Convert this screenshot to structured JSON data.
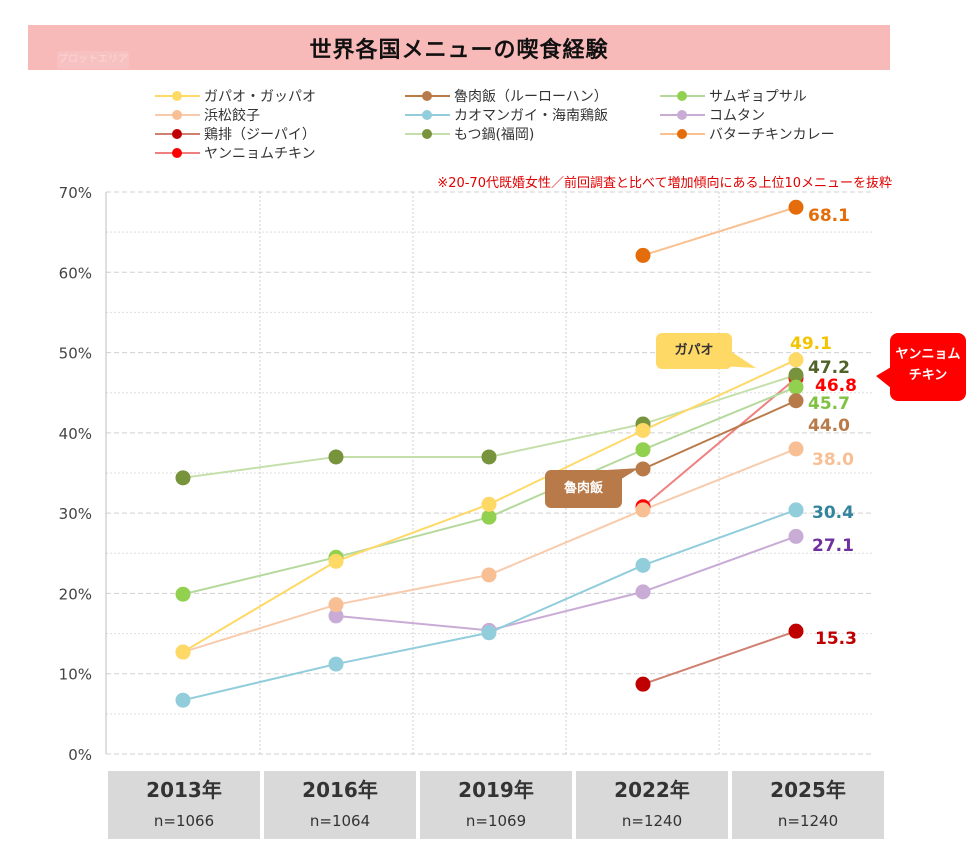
{
  "title": "世界各国メニューの喫食経験",
  "plot_area_tag": "プロットエリア",
  "note": "※20-70代既婚女性／前回調査と比べて増加傾向にある上位10メニューを抜粋",
  "callouts": {
    "gapao": {
      "text": "ガパオ",
      "bg": "#ffd966",
      "color": "#333333"
    },
    "lurou": {
      "text": "魯肉飯",
      "bg": "#b97a4a",
      "color": "#ffffff"
    },
    "yangnyeom": {
      "text": "ヤンニョム チキン",
      "line1": "ヤンニョム",
      "line2": "チキン",
      "bg": "#ff0000",
      "color": "#ffffff"
    }
  },
  "x_labels": [
    {
      "year": "2013年",
      "n": "n=1066"
    },
    {
      "year": "2016年",
      "n": "n=1064"
    },
    {
      "year": "2019年",
      "n": "n=1069"
    },
    {
      "year": "2022年",
      "n": "n=1240"
    },
    {
      "year": "2025年",
      "n": "n=1240"
    }
  ],
  "chart_data": {
    "type": "line",
    "title": "世界各国メニューの喫食経験",
    "xlabel": "",
    "ylabel": "",
    "x": [
      "2013年",
      "2016年",
      "2019年",
      "2022年",
      "2025年"
    ],
    "y_ticks": [
      "0%",
      "10%",
      "20%",
      "30%",
      "40%",
      "50%",
      "60%",
      "70%"
    ],
    "ylim": [
      0,
      70
    ],
    "grid": true,
    "legend_position": "top",
    "series": [
      {
        "name": "ガパオ・ガッパオ",
        "line": "#ffd966",
        "marker": "#ffd966",
        "label_color": "#f5c400",
        "values": [
          12.7,
          24.0,
          31.1,
          40.3,
          49.1
        ]
      },
      {
        "name": "魯肉飯（ルーローハン）",
        "line": "#b97a4a",
        "marker": "#b97a4a",
        "label_color": "#b97a4a",
        "values": [
          null,
          null,
          null,
          35.5,
          44.0
        ]
      },
      {
        "name": "サムギョプサル",
        "line": "#b5d99c",
        "marker": "#92d050",
        "label_color": "#7fc241",
        "values": [
          19.9,
          24.5,
          29.5,
          37.9,
          45.7
        ]
      },
      {
        "name": "浜松餃子",
        "line": "#f8cbad",
        "marker": "#f8bf94",
        "label_color": "#f8bf94",
        "values": [
          12.7,
          18.6,
          22.3,
          30.4,
          38.0
        ]
      },
      {
        "name": "カオマンガイ・海南鶏飯",
        "line": "#92cddc",
        "marker": "#92cddc",
        "label_color": "#31849b",
        "values": [
          6.7,
          11.2,
          15.1,
          23.5,
          30.4
        ]
      },
      {
        "name": "コムタン",
        "line": "#c9acd6",
        "marker": "#c9acd6",
        "label_color": "#7030a0",
        "values": [
          null,
          17.2,
          15.4,
          20.2,
          27.1
        ]
      },
      {
        "name": "鶏排（ジーパイ）",
        "line": "#d08070",
        "marker": "#c00000",
        "label_color": "#c00000",
        "values": [
          null,
          null,
          null,
          8.7,
          15.3
        ]
      },
      {
        "name": "もつ鍋(福岡)",
        "line": "#c4dfaa",
        "marker": "#77933c",
        "label_color": "#4f6228",
        "values": [
          34.4,
          37.0,
          37.0,
          41.1,
          47.2
        ]
      },
      {
        "name": "バターチキンカレー",
        "line": "#fac090",
        "marker": "#e46c0a",
        "label_color": "#e46c0a",
        "values": [
          null,
          null,
          null,
          62.1,
          68.1
        ]
      },
      {
        "name": "ヤンニョムチキン",
        "line": "#f08080",
        "marker": "#ff0000",
        "label_color": "#ff0000",
        "values": [
          null,
          null,
          null,
          30.8,
          46.8
        ]
      }
    ],
    "end_labels": [
      {
        "series": "バターチキンカレー",
        "text": "68.1"
      },
      {
        "series": "ガパオ・ガッパオ",
        "text": "49.1"
      },
      {
        "series": "もつ鍋(福岡)",
        "text": "47.2"
      },
      {
        "series": "ヤンニョムチキン",
        "text": "46.8"
      },
      {
        "series": "サムギョプサル",
        "text": "45.7"
      },
      {
        "series": "魯肉飯（ルーローハン）",
        "text": "44.0"
      },
      {
        "series": "浜松餃子",
        "text": "38.0"
      },
      {
        "series": "カオマンガイ・海南鶏飯",
        "text": "30.4"
      },
      {
        "series": "コムタン",
        "text": "27.1"
      },
      {
        "series": "鶏排（ジーパイ）",
        "text": "15.3"
      }
    ]
  }
}
